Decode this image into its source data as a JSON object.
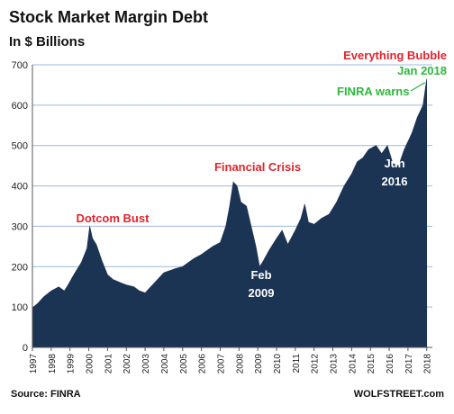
{
  "chart_data": {
    "type": "area",
    "title": "Stock Market Margin Debt",
    "subtitle": "In $ Billions",
    "xlabel": "",
    "ylabel": "",
    "ylim": [
      0,
      700
    ],
    "xlim": [
      1997,
      2018.3
    ],
    "yticks": [
      0,
      100,
      200,
      300,
      400,
      500,
      600,
      700
    ],
    "xticks": [
      "1997",
      "1998",
      "1999",
      "2000",
      "2001",
      "2002",
      "2003",
      "2004",
      "2005",
      "2006",
      "2007",
      "2008",
      "2009",
      "2010",
      "2011",
      "2012",
      "2013",
      "2014",
      "2015",
      "2016",
      "2017",
      "2018"
    ],
    "grid": true,
    "series": [
      {
        "color": "#1c3454",
        "x": [
          1997.0,
          1997.3,
          1997.6,
          1998.0,
          1998.4,
          1998.7,
          1998.9,
          1999.2,
          1999.6,
          1999.9,
          2000.05,
          2000.2,
          2000.4,
          2000.7,
          2001.0,
          2001.3,
          2001.7,
          2002.0,
          2002.4,
          2002.7,
          2003.0,
          2003.3,
          2003.6,
          2004.0,
          2004.3,
          2004.6,
          2005.0,
          2005.3,
          2005.6,
          2006.0,
          2006.3,
          2006.6,
          2007.0,
          2007.3,
          2007.5,
          2007.7,
          2007.9,
          2008.1,
          2008.4,
          2008.7,
          2008.9,
          2009.1,
          2009.3,
          2009.6,
          2010.0,
          2010.3,
          2010.6,
          2011.0,
          2011.3,
          2011.5,
          2011.7,
          2012.0,
          2012.4,
          2012.8,
          2013.2,
          2013.6,
          2014.0,
          2014.3,
          2014.6,
          2014.9,
          2015.3,
          2015.6,
          2015.9,
          2016.2,
          2016.5,
          2016.8,
          2017.2,
          2017.5,
          2017.8,
          2018.0
        ],
        "values": [
          98,
          110,
          125,
          140,
          150,
          140,
          155,
          180,
          210,
          245,
          300,
          270,
          255,
          215,
          180,
          168,
          160,
          155,
          150,
          140,
          135,
          150,
          165,
          185,
          190,
          195,
          200,
          210,
          220,
          230,
          240,
          250,
          260,
          300,
          350,
          410,
          400,
          360,
          350,
          290,
          250,
          200,
          215,
          240,
          270,
          290,
          255,
          290,
          320,
          355,
          310,
          305,
          320,
          330,
          360,
          400,
          430,
          460,
          470,
          490,
          500,
          480,
          500,
          455,
          450,
          490,
          530,
          570,
          600,
          665
        ]
      }
    ],
    "annotations": [
      {
        "text": "Dotcom Bust",
        "color": "#e3242b"
      },
      {
        "text": "Financial Crisis",
        "color": "#e3242b"
      },
      {
        "text": "Everything Bubble",
        "color": "#e3242b"
      },
      {
        "text": "Jan 2018",
        "color": "#2db83d"
      },
      {
        "text": "FINRA warns",
        "color": "#2db83d"
      },
      {
        "text": "Feb",
        "color": "#ffffff"
      },
      {
        "text": "2009",
        "color": "#ffffff"
      },
      {
        "text": "Jun",
        "color": "#ffffff"
      },
      {
        "text": "2016",
        "color": "#ffffff"
      }
    ]
  },
  "footer": {
    "source": "Source: FINRA",
    "brand": "WOLFSTREET.com"
  }
}
